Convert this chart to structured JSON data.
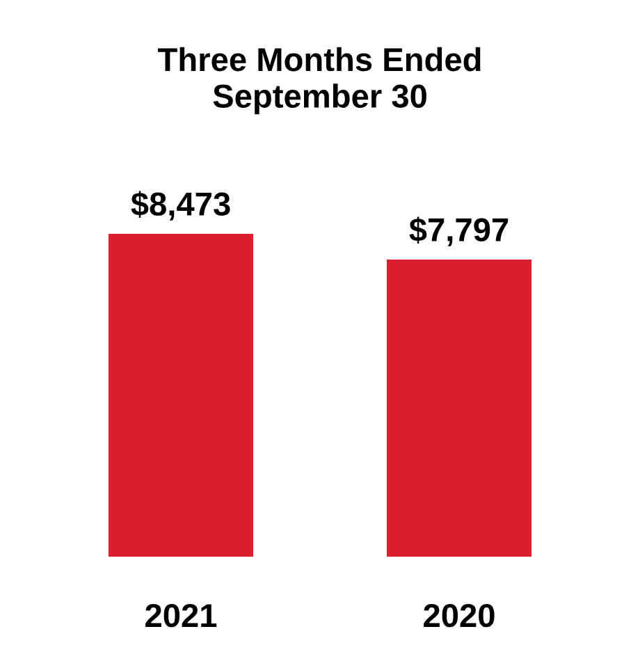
{
  "chart_data": {
    "type": "bar",
    "title": "Three Months Ended\nSeptember 30",
    "categories": [
      "2021",
      "2020"
    ],
    "values": [
      8473,
      7797
    ],
    "value_labels": [
      "$8,473",
      "$7,797"
    ],
    "color": "#dc1f2e"
  }
}
